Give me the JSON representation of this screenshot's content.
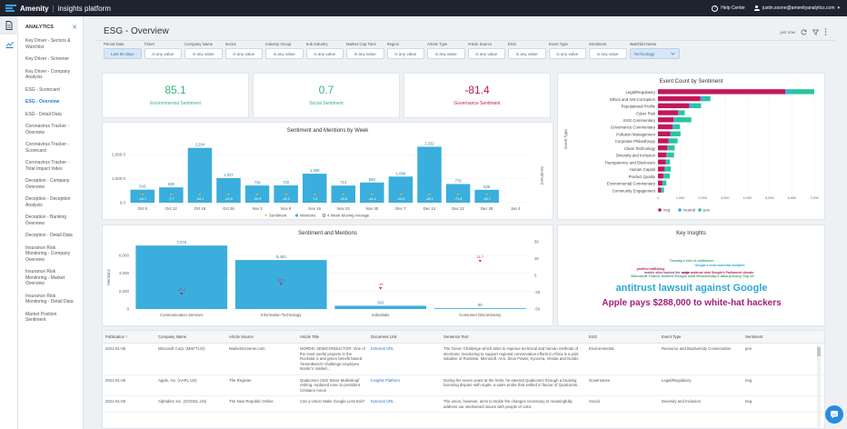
{
  "app": {
    "brand": "Amenity",
    "separator": "|",
    "product": "insights platform"
  },
  "topbar": {
    "help_label": "Help Center",
    "user_email": "justin.soone@amenityanalytics.com",
    "user_caret": "▾",
    "help_glyph": "?"
  },
  "sidenav": {
    "title": "ANALYTICS",
    "close_glyph": "✕",
    "items": [
      "Key Driver - Sectors & Watchlist",
      "Key Driver - Screener",
      "Key Driver - Company Analysis",
      "ESG - Scorecard",
      "ESG - Overview",
      "ESG - Detail Data",
      "Coronavirus Tracker - Overview",
      "Coronavirus Tracker - Scorecard",
      "Coronavirus Tracker - Total Impact Index",
      "Deception - Company Overview",
      "Deception - Deception Analysis",
      "Deception - Banking Overview",
      "Deception - Detail Data",
      "Insurance Risk Monitoring - Company Overview",
      "Insurance Risk Monitoring - Market Overview",
      "Insurance Risk Monitoring - Detail Data",
      "Market Position Sentiment"
    ]
  },
  "page": {
    "title": "ESG - Overview",
    "toolbar_label": "just now"
  },
  "filters": [
    {
      "label": "Period Date",
      "value": "Last 90 days"
    },
    {
      "label": "Ticker",
      "value": "is any value"
    },
    {
      "label": "Company Name",
      "value": "is any value"
    },
    {
      "label": "Sector",
      "value": "is any value"
    },
    {
      "label": "Industry Group",
      "value": "is any value"
    },
    {
      "label": "Sub Industry",
      "value": "is any value"
    },
    {
      "label": "Market Cap Tiers",
      "value": "is any value"
    },
    {
      "label": "Region",
      "value": "is any value"
    },
    {
      "label": "Article Type",
      "value": "is any value"
    },
    {
      "label": "Article Source",
      "value": "is any value"
    },
    {
      "label": "ESG",
      "value": "is any value"
    },
    {
      "label": "Event Type",
      "value": "is any value"
    },
    {
      "label": "Sentiment",
      "value": "is any value"
    },
    {
      "label": "Watchlist Name",
      "value": "Technology"
    }
  ],
  "kpis": [
    {
      "value": "85.1",
      "label": "Environmental Sentiment",
      "color": "#34b37a"
    },
    {
      "value": "0.7",
      "label": "Social Sentiment",
      "color": "#34b37a"
    },
    {
      "value": "-81.4",
      "label": "Governance Sentiment",
      "color": "#c2185b"
    }
  ],
  "colors": {
    "bar": "#3aaedc",
    "neg": "#c2185b",
    "pos": "#26c6a0",
    "neutral": "#3aaedc",
    "accent": "#1d7fd6"
  },
  "chart_data": [
    {
      "type": "bar",
      "title": "Sentiment and Mentions by Week",
      "categories": [
        "Oct 5",
        "Oct 12",
        "Oct 19",
        "Oct 26",
        "Nov 2",
        "Nov 9",
        "Nov 16",
        "Nov 23",
        "Nov 30",
        "Dec 7",
        "Dec 14",
        "Dec 21",
        "Dec 28",
        "Jan 4"
      ],
      "x_tick_labels": [
        "Oct 5",
        "Oct 12",
        "Oct 19",
        "Oct 26",
        "Nov 2",
        "Nov 9",
        "Nov 16",
        "Nov 23",
        "Nov 30",
        "Dec 7",
        "Dec 14",
        "Dec 21",
        "Dec 28",
        "Jan 4"
      ],
      "series": [
        {
          "name": "Mentions",
          "values": [
            543,
            638,
            2284,
            1027,
            716,
            720,
            1208,
            713,
            840,
            1089,
            2332,
            778,
            536,
            0
          ],
          "labels": [
            "543",
            "638",
            "2,284",
            "1,027",
            "716",
            "720",
            "1,208",
            "713",
            "840",
            "1,089",
            "2,332",
            "778",
            "536",
            ""
          ]
        },
        {
          "name": "Sentiment",
          "labels": [
            "-16.7",
            "-7.7",
            "-34.1",
            "-20.6",
            "-30.9",
            "-41.2",
            "-7.2",
            "-20.6",
            "-44.4",
            "-20.5",
            "-28.1",
            "-71.8",
            "-50.7",
            ""
          ]
        }
      ],
      "ylim": [
        0,
        2500
      ],
      "y_ticks": [
        "0.0",
        "1,000.0",
        "2,000.0"
      ],
      "y2_label": "Sentiment",
      "legend": [
        "Sentiment",
        "Mentions",
        "4 Week Moving Average"
      ]
    },
    {
      "type": "bar",
      "title": "Event Count by Sentiment",
      "orientation": "horizontal",
      "ylabel": "Event Type",
      "categories": [
        "Legal/Regulatory",
        "Ethics and Anti-Corruption",
        "Reputational Profile",
        "Cyber Risk",
        "ESG Commentary",
        "Governance Commentary",
        "Pollution Management",
        "Corporate Philanthropy",
        "Clean Technology",
        "Diversity and Inclusion",
        "Transparency and Disclosure",
        "Human Capital",
        "Product Quality",
        "Environmental Commentary",
        "Community Engagement"
      ],
      "series": [
        {
          "name": "neg",
          "values": [
            5700,
            1900,
            1400,
            900,
            700,
            650,
            550,
            480,
            420,
            380,
            350,
            300,
            250,
            200,
            150
          ]
        },
        {
          "name": "neutral",
          "values": [
            200,
            150,
            130,
            100,
            90,
            80,
            60,
            50,
            50,
            40,
            40,
            30,
            30,
            25,
            20
          ]
        },
        {
          "name": "pos",
          "values": [
            1100,
            300,
            400,
            200,
            700,
            250,
            400,
            350,
            280,
            300,
            150,
            250,
            250,
            150,
            100
          ]
        }
      ],
      "xlim": [
        0,
        7000
      ],
      "x_ticks": [
        "0",
        "1,000",
        "2,000",
        "3,000",
        "4,000",
        "5,000",
        "6,000",
        "7,000"
      ],
      "legend": [
        "neg",
        "neutral",
        "pos"
      ]
    },
    {
      "type": "bar",
      "title": "Sentiment and Mentions",
      "categories": [
        "Communication Services",
        "Information Technology",
        "Industrials",
        "Consumer Discretionary"
      ],
      "series": [
        {
          "name": "Mentions",
          "values": [
            7076,
            5462,
            363,
            85
          ],
          "labels": [
            "7,076",
            "5,462",
            "363",
            "85"
          ]
        },
        {
          "name": "Sentiment",
          "values": [
            -27.1,
            -12.7,
            -19,
            21.7
          ],
          "labels": [
            "-27.1",
            "-12.7",
            "-19",
            "21.7"
          ]
        }
      ],
      "ylim": [
        0,
        7500
      ],
      "y_ticks": [
        "0",
        "2,000",
        "4,000",
        "6,000"
      ],
      "y2_ticks": [
        "50",
        "25",
        "0",
        "-25",
        "-50"
      ],
      "ylabel": "Mentions"
    }
  ],
  "insights": {
    "title": "Key Insights",
    "phrases": [
      {
        "text": "antitrust lawsuit against Google",
        "color": "#2ba8d6",
        "size": 11
      },
      {
        "text": "Apple pays $288,000 to white-hat hackers",
        "color": "#a3207a",
        "size": 10
      },
      {
        "text": "Microsoft Teams' market Google said Wednesday's data privacy Top 20",
        "color": "#40a06a",
        "size": 4
      },
      {
        "text": "profiled trafficking",
        "color": "#c2185b",
        "size": 3.5
      },
      {
        "text": "Google's environmental footprint",
        "color": "#2ba8d6",
        "size": 3.5
      },
      {
        "text": "mobile sites hacked the surge",
        "color": "#8c3a8c",
        "size": 3.5
      },
      {
        "text": "state antitrust deal Google's Parliament climate",
        "color": "#c2185b",
        "size": 3.5
      },
      {
        "text": "Tuesday's vote of confidence",
        "color": "#40a06a",
        "size": 3.5
      }
    ]
  },
  "table": {
    "columns": [
      "Publication ↑",
      "Company Name",
      "Article Source",
      "Article Title",
      "Document Link",
      "Sentence Text",
      "ESG",
      "Event Type",
      "Sentiment"
    ],
    "rows": [
      [
        "2021-01-05",
        "Microsoft Corp. (MSFT.US)",
        "MarketScreener.com",
        "NORDIC SEMICONDUCTOR: One of the most useful projects in the Rockstar a and green benefit based 'GreenBench' challenge employee Nordic's market...",
        "External URL",
        "The Green Challenge which aims to improve technical and human methods of electronic monitoring to support regional conservation efforts in Africa is a joint initiative of Rockstar, Microsoft, Arm, Zeus Power, Kyocera, Vestas and Nordic.",
        "Environmental",
        "Resource and Biodiversity Conservation",
        "pos"
      ],
      [
        "2021-01-05",
        "Apple, Inc. (AAPL.US)",
        "The Register",
        "Qualcomm CEO Steve Mollenkopf retiring, replaced exec to president Cristiano Amon",
        "Insights Platform",
        "During his seven years at the helm, he steered Qualcomm through a bruising licensing dispute with Apple, a sales probe that settled in favour of Qualcomm.",
        "Governance",
        "Legal/Regulatory",
        "neg"
      ],
      [
        "2021-01-05",
        "Alphabet, Inc. (GOOGL.US)",
        "The New Republic Online",
        "Can a Union Make Google Less Evil?",
        "External URL",
        "The union, however, aims to tackle the changes necessary to meaningfully address our intertwined issues with people of color.",
        "Social",
        "Diversity and Inclusion",
        "neg"
      ]
    ]
  }
}
